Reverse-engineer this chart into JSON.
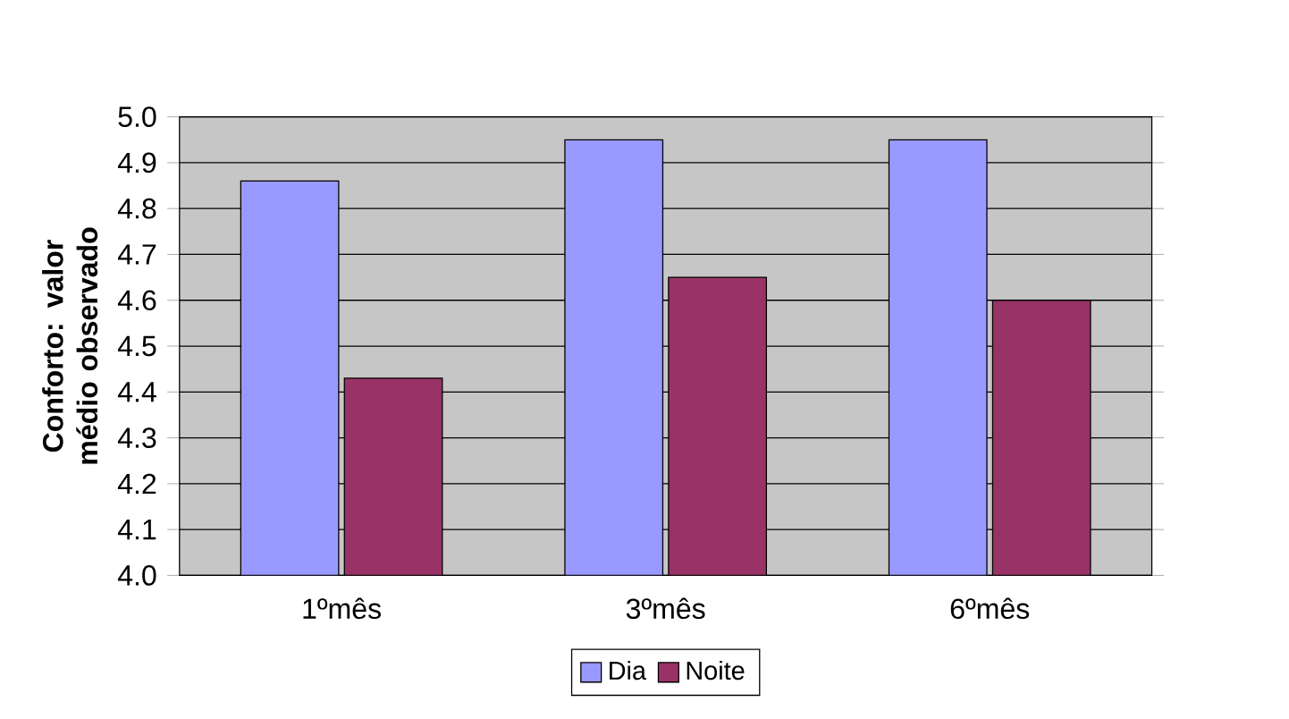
{
  "chart_data": {
    "type": "bar",
    "ylabel": "Conforto: valor médio observado",
    "categories": [
      "1ºmês",
      "3ºmês",
      "6ºmês"
    ],
    "series": [
      {
        "name": "Dia",
        "color": "#9999ff",
        "values": [
          4.86,
          4.95,
          4.95
        ]
      },
      {
        "name": "Noite",
        "color": "#993366",
        "values": [
          4.43,
          4.65,
          4.6
        ]
      }
    ],
    "ylim": [
      4.0,
      5.0
    ],
    "yticks": [
      {
        "value": 4.0,
        "label": "4.0"
      },
      4.1,
      4.2,
      4.3,
      4.4,
      4.5,
      4.6,
      4.7,
      4.8,
      4.9,
      {
        "value": 5.0,
        "label": "5.0"
      }
    ],
    "grid": "y",
    "legend": "bottom"
  }
}
